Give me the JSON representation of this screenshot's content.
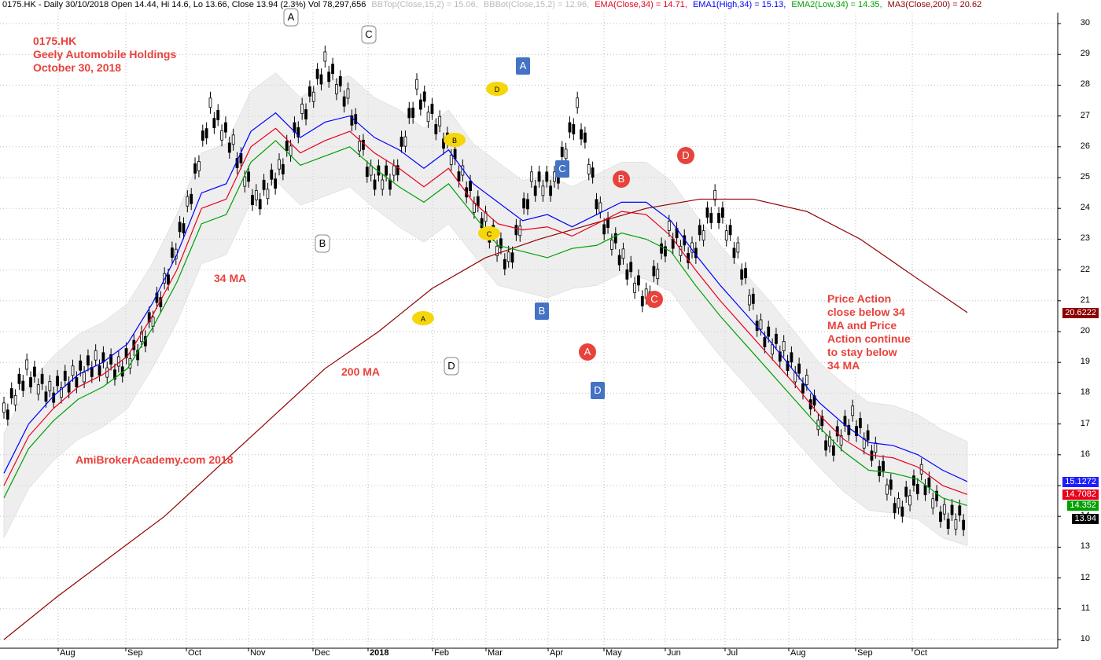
{
  "header": {
    "ticker_line": "0175.HK - Daily 30/10/2018 Open 14.44, Hi 14.6, Lo 13.66, Close 13.94 (2.3%) Vol 78,297,656",
    "bbtop": "BBTop(Close,15,2) = 15.06,",
    "bbbot": "BBBot(Close,15,2) = 12.96,",
    "ema": "EMA(Close,34) = 14.71,",
    "ema1": "EMA1(High,34) = 15.13,",
    "ema2": "EMA2(Low,34) = 14.35,",
    "ma3": "MA3(Close,200) = 20.62"
  },
  "notes": {
    "title_line1": "0175.HK",
    "title_line2": "Geely Automobile Holdings",
    "title_line3": "October 30, 2018",
    "ma34": "34 MA",
    "ma200": "200 MA",
    "watermark": "AmiBrokerAcademy.com  2018",
    "price_action": [
      "Price Action",
      "close below 34",
      "MA and Price",
      "Action continue",
      "to stay below",
      "34 MA"
    ]
  },
  "chart_data": {
    "type": "line",
    "title": "0175.HK - Daily 30/10/2018",
    "ylim": [
      10,
      30
    ],
    "y_ticks": [
      "10",
      "11",
      "12",
      "13",
      "14",
      "15",
      "16",
      "17",
      "18",
      "19",
      "20",
      "21",
      "22",
      "23",
      "24",
      "25",
      "26",
      "27",
      "28",
      "29",
      "30"
    ],
    "x_ticks": [
      "Aug",
      "Sep",
      "Oct",
      "Nov",
      "Dec",
      "2018",
      "Feb",
      "Mar",
      "Apr",
      "May",
      "Jun",
      "Jul",
      "Aug",
      "Sep",
      "Oct"
    ],
    "grid": true,
    "series": [
      {
        "name": "Close",
        "values": [
          17.3,
          18.7,
          18.0,
          18.5,
          19.0,
          18.8,
          19.6,
          21.5,
          24.0,
          27.2,
          26.0,
          24.2,
          25.2,
          27.0,
          28.7,
          27.5,
          25.0,
          25.0,
          27.8,
          26.6,
          25.0,
          23.5,
          22.2,
          24.8,
          24.8,
          27.2,
          23.8,
          22.3,
          21.0,
          23.2,
          22.5,
          24.2,
          22.5,
          20.0,
          19.3,
          18.2,
          16.2,
          17.2,
          16.0,
          14.2,
          15.3,
          14.0,
          13.94
        ]
      },
      {
        "name": "EMA(Close,34)",
        "values": [
          15.0,
          16.6,
          17.5,
          18.2,
          18.6,
          19.2,
          20.5,
          22.0,
          24.0,
          24.3,
          26.0,
          26.6,
          25.8,
          26.2,
          26.5,
          25.8,
          25.3,
          24.7,
          25.3,
          24.2,
          23.5,
          23.3,
          23.4,
          23.1,
          23.5,
          23.9,
          23.8,
          23.1,
          22.0,
          21.0,
          20.1,
          19.2,
          18.3,
          17.3,
          16.5,
          16.0,
          15.9,
          15.6,
          15.0,
          14.71
        ]
      },
      {
        "name": "EMA1(High,34)",
        "values": [
          15.4,
          17.0,
          17.9,
          18.6,
          19.0,
          19.6,
          20.9,
          22.5,
          24.5,
          24.8,
          26.5,
          27.1,
          26.3,
          26.8,
          27.0,
          26.3,
          25.9,
          25.3,
          25.9,
          24.8,
          24.2,
          23.6,
          23.8,
          23.4,
          23.8,
          24.2,
          24.2,
          23.6,
          22.5,
          21.5,
          20.6,
          19.7,
          18.7,
          17.7,
          17.0,
          16.4,
          16.3,
          16.0,
          15.5,
          15.13
        ]
      },
      {
        "name": "EMA2(Low,34)",
        "values": [
          14.6,
          16.2,
          17.1,
          17.8,
          18.2,
          18.8,
          20.1,
          21.6,
          23.5,
          23.8,
          25.5,
          26.2,
          25.4,
          25.7,
          26.0,
          25.3,
          24.7,
          24.2,
          24.8,
          23.8,
          22.8,
          22.6,
          22.4,
          22.7,
          22.8,
          23.2,
          23.0,
          22.6,
          21.5,
          20.5,
          19.6,
          18.7,
          17.8,
          16.9,
          16.1,
          15.5,
          15.4,
          15.2,
          14.6,
          14.35
        ]
      },
      {
        "name": "MA3(Close,200)",
        "values": [
          10.0,
          11.4,
          12.7,
          14.0,
          15.6,
          17.2,
          18.8,
          20.0,
          21.4,
          22.4,
          23.0,
          23.5,
          24.0,
          24.3,
          24.3,
          23.9,
          23.0,
          21.8,
          20.62
        ]
      }
    ],
    "annotations": [
      "A",
      "B",
      "C",
      "D",
      "A",
      "B",
      "C",
      "D",
      "A",
      "B",
      "C",
      "D",
      "A",
      "B",
      "C",
      "D"
    ],
    "price_tags": [
      "20.6222",
      "15.1272",
      "14.7082",
      "14.352",
      "13.94"
    ]
  }
}
